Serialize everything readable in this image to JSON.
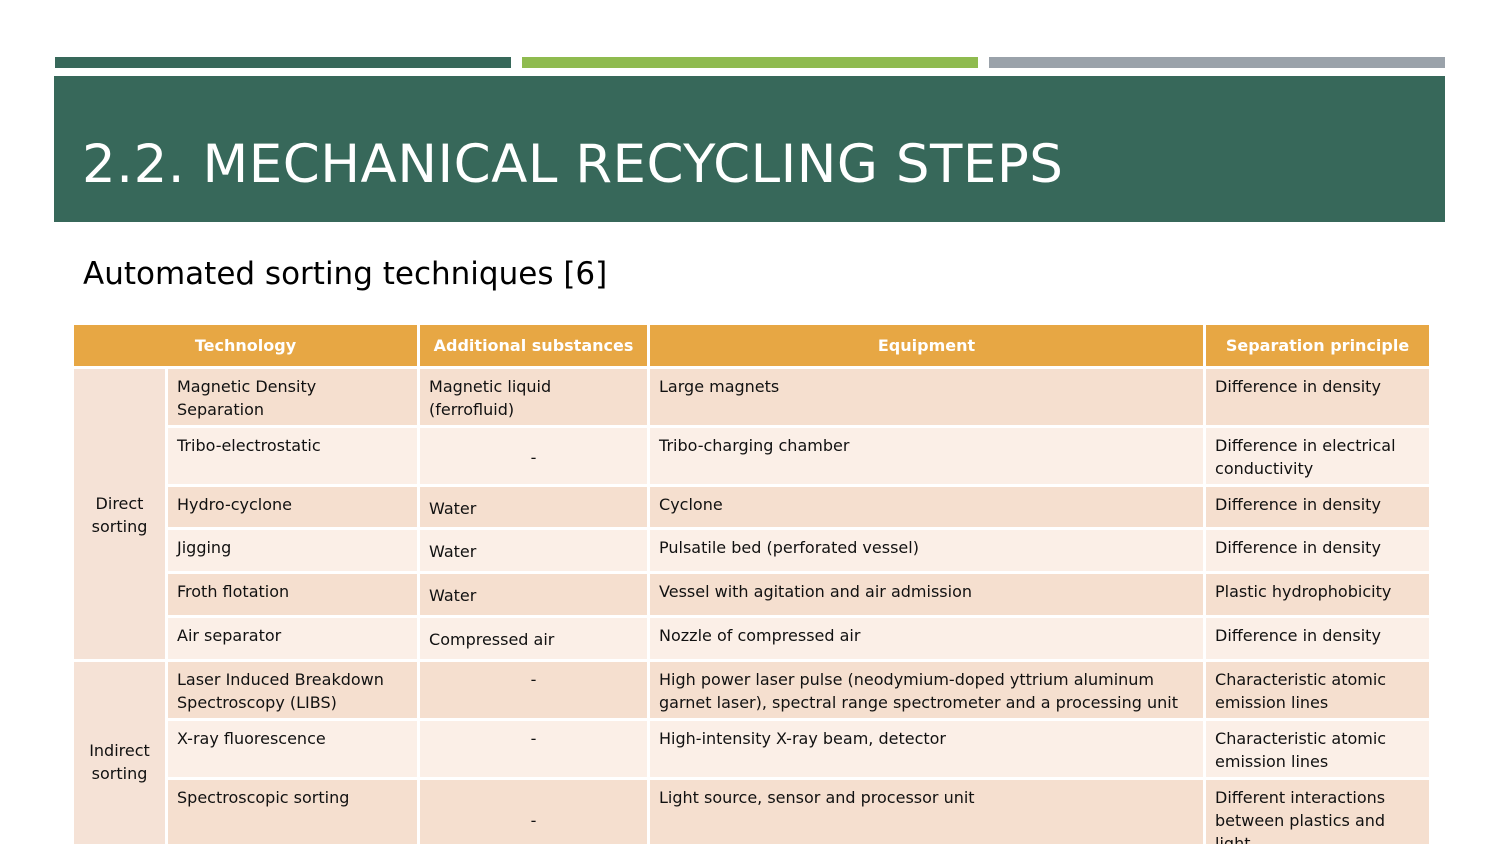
{
  "colors": {
    "accent_dark_green": "#37685a",
    "accent_light_green": "#8fbb4f",
    "accent_grey": "#9aa2aa",
    "table_header": "#e7a744",
    "row_dark": "#f5dfcf",
    "row_light": "#fbefe7"
  },
  "slide": {
    "title": "2.2.  MECHANICAL RECYCLING STEPS",
    "subtitle": "Automated sorting techniques [6]"
  },
  "table": {
    "headers": {
      "technology": "Technology",
      "additional": "Additional substances",
      "equipment": "Equipment",
      "principle": "Separation principle"
    },
    "groups": {
      "direct": "Direct sorting",
      "indirect": "Indirect sorting"
    },
    "rows": [
      {
        "technology": "Magnetic Density Separation",
        "additional": "Magnetic liquid (ferrofluid)",
        "equipment": "Large magnets",
        "principle": "Difference in density"
      },
      {
        "technology": "Tribo-electrostatic",
        "additional": "-",
        "equipment": "Tribo-charging chamber",
        "principle": "Difference in electrical conductivity"
      },
      {
        "technology": "Hydro-cyclone",
        "additional": "Water",
        "equipment": "Cyclone",
        "principle": "Difference in density"
      },
      {
        "technology": "Jigging",
        "additional": "Water",
        "equipment": "Pulsatile bed (perforated vessel)",
        "principle": "Difference in density"
      },
      {
        "technology": "Froth flotation",
        "additional": "Water",
        "equipment": "Vessel with agitation and air admission",
        "principle": "Plastic hydrophobicity"
      },
      {
        "technology": "Air separator",
        "additional": "Compressed air",
        "equipment": "Nozzle of compressed air",
        "principle": "Difference in density"
      },
      {
        "technology": "Laser Induced Breakdown Spectroscopy (LIBS)",
        "additional": "-",
        "equipment": "High power laser pulse (neodymium-doped yttrium aluminum garnet laser), spectral range spectrometer and a processing unit",
        "principle": "Characteristic atomic emission lines"
      },
      {
        "technology": "X-ray fluorescence",
        "additional": "-",
        "equipment": "High-intensity X-ray beam, detector",
        "principle": "Characteristic atomic emission lines"
      },
      {
        "technology": "Spectroscopic sorting",
        "additional": "-",
        "equipment": "Light source, sensor and processor unit",
        "principle": "Different interactions between plastics and light"
      }
    ]
  }
}
